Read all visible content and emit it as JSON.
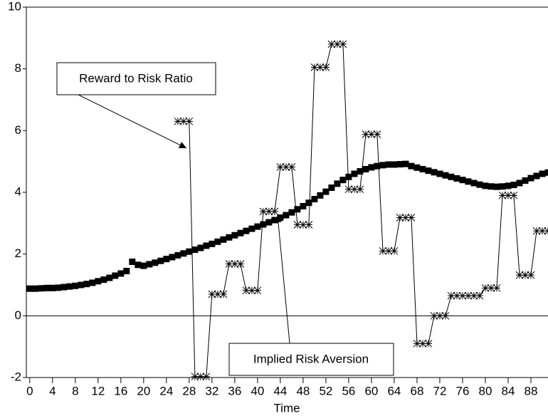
{
  "chart_data": {
    "type": "line",
    "xlabel": "Time",
    "x": [
      0,
      1,
      2,
      3,
      4,
      5,
      6,
      7,
      8,
      9,
      10,
      11,
      12,
      13,
      14,
      15,
      16,
      17,
      18,
      19,
      20,
      21,
      22,
      23,
      24,
      25,
      26,
      27,
      28,
      29,
      30,
      31,
      32,
      33,
      34,
      35,
      36,
      37,
      38,
      39,
      40,
      41,
      42,
      43,
      44,
      45,
      46,
      47,
      48,
      49,
      50,
      51,
      52,
      53,
      54,
      55,
      56,
      57,
      58,
      59,
      60,
      61,
      62,
      63,
      64,
      65,
      66,
      67,
      68,
      69,
      70,
      71,
      72,
      73,
      74,
      75,
      76,
      77,
      78,
      79,
      80,
      81,
      82,
      83,
      84,
      85,
      86,
      87,
      88,
      89,
      90,
      91
    ],
    "series": [
      {
        "name": "Implied Risk Aversion",
        "color": "#000000",
        "marker": "square",
        "values": [
          0.88,
          0.88,
          0.89,
          0.9,
          0.9,
          0.91,
          0.93,
          0.95,
          0.97,
          1.0,
          1.03,
          1.07,
          1.12,
          1.17,
          1.23,
          1.3,
          1.37,
          1.45,
          1.75,
          1.65,
          1.62,
          1.67,
          1.72,
          1.78,
          1.84,
          1.9,
          1.96,
          2.02,
          2.08,
          2.14,
          2.2,
          2.27,
          2.33,
          2.4,
          2.47,
          2.54,
          2.61,
          2.68,
          2.75,
          2.82,
          2.89,
          2.96,
          3.03,
          3.1,
          3.18,
          3.26,
          3.35,
          3.45,
          3.55,
          3.66,
          3.78,
          3.9,
          4.02,
          4.15,
          4.28,
          4.4,
          4.5,
          4.6,
          4.68,
          4.75,
          4.81,
          4.85,
          4.88,
          4.9,
          4.9,
          4.91,
          4.92,
          4.85,
          4.8,
          4.75,
          4.7,
          4.65,
          4.6,
          4.55,
          4.5,
          4.45,
          4.4,
          4.35,
          4.3,
          4.25,
          4.21,
          4.19,
          4.18,
          4.19,
          4.21,
          4.24,
          4.3,
          4.38,
          4.46,
          4.53,
          4.6,
          4.64
        ]
      },
      {
        "name": "Reward to Risk Ratio",
        "color": "#000000",
        "marker": "asterisk",
        "values": [
          null,
          null,
          null,
          null,
          null,
          null,
          null,
          null,
          null,
          null,
          null,
          null,
          null,
          null,
          null,
          null,
          null,
          null,
          null,
          null,
          null,
          null,
          null,
          null,
          null,
          null,
          6.3,
          6.3,
          6.3,
          -1.97,
          -1.97,
          -1.97,
          0.7,
          0.7,
          0.7,
          1.68,
          1.68,
          1.68,
          0.82,
          0.82,
          0.82,
          3.38,
          3.38,
          3.38,
          4.82,
          4.82,
          4.82,
          2.95,
          2.95,
          2.95,
          8.05,
          8.05,
          8.05,
          8.8,
          8.8,
          8.8,
          4.1,
          4.1,
          4.1,
          5.88,
          5.88,
          5.88,
          2.1,
          2.1,
          2.1,
          3.18,
          3.18,
          3.18,
          -0.9,
          -0.9,
          -0.9,
          0,
          0,
          0,
          0.65,
          0.65,
          0.65,
          0.65,
          0.65,
          0.65,
          0.9,
          0.9,
          0.9,
          3.9,
          3.9,
          3.9,
          1.32,
          1.32,
          1.32,
          2.75,
          2.75,
          2.75
        ]
      }
    ],
    "xlim": [
      -0.6,
      91
    ],
    "ylim": [
      -2,
      10
    ],
    "xticks": [
      0,
      4,
      8,
      12,
      16,
      20,
      24,
      28,
      32,
      36,
      40,
      44,
      48,
      52,
      56,
      60,
      64,
      68,
      72,
      76,
      80,
      84,
      88
    ],
    "yticks": [
      -2,
      0,
      2,
      4,
      6,
      8,
      10
    ],
    "baseline": 0,
    "grid": false
  }
}
